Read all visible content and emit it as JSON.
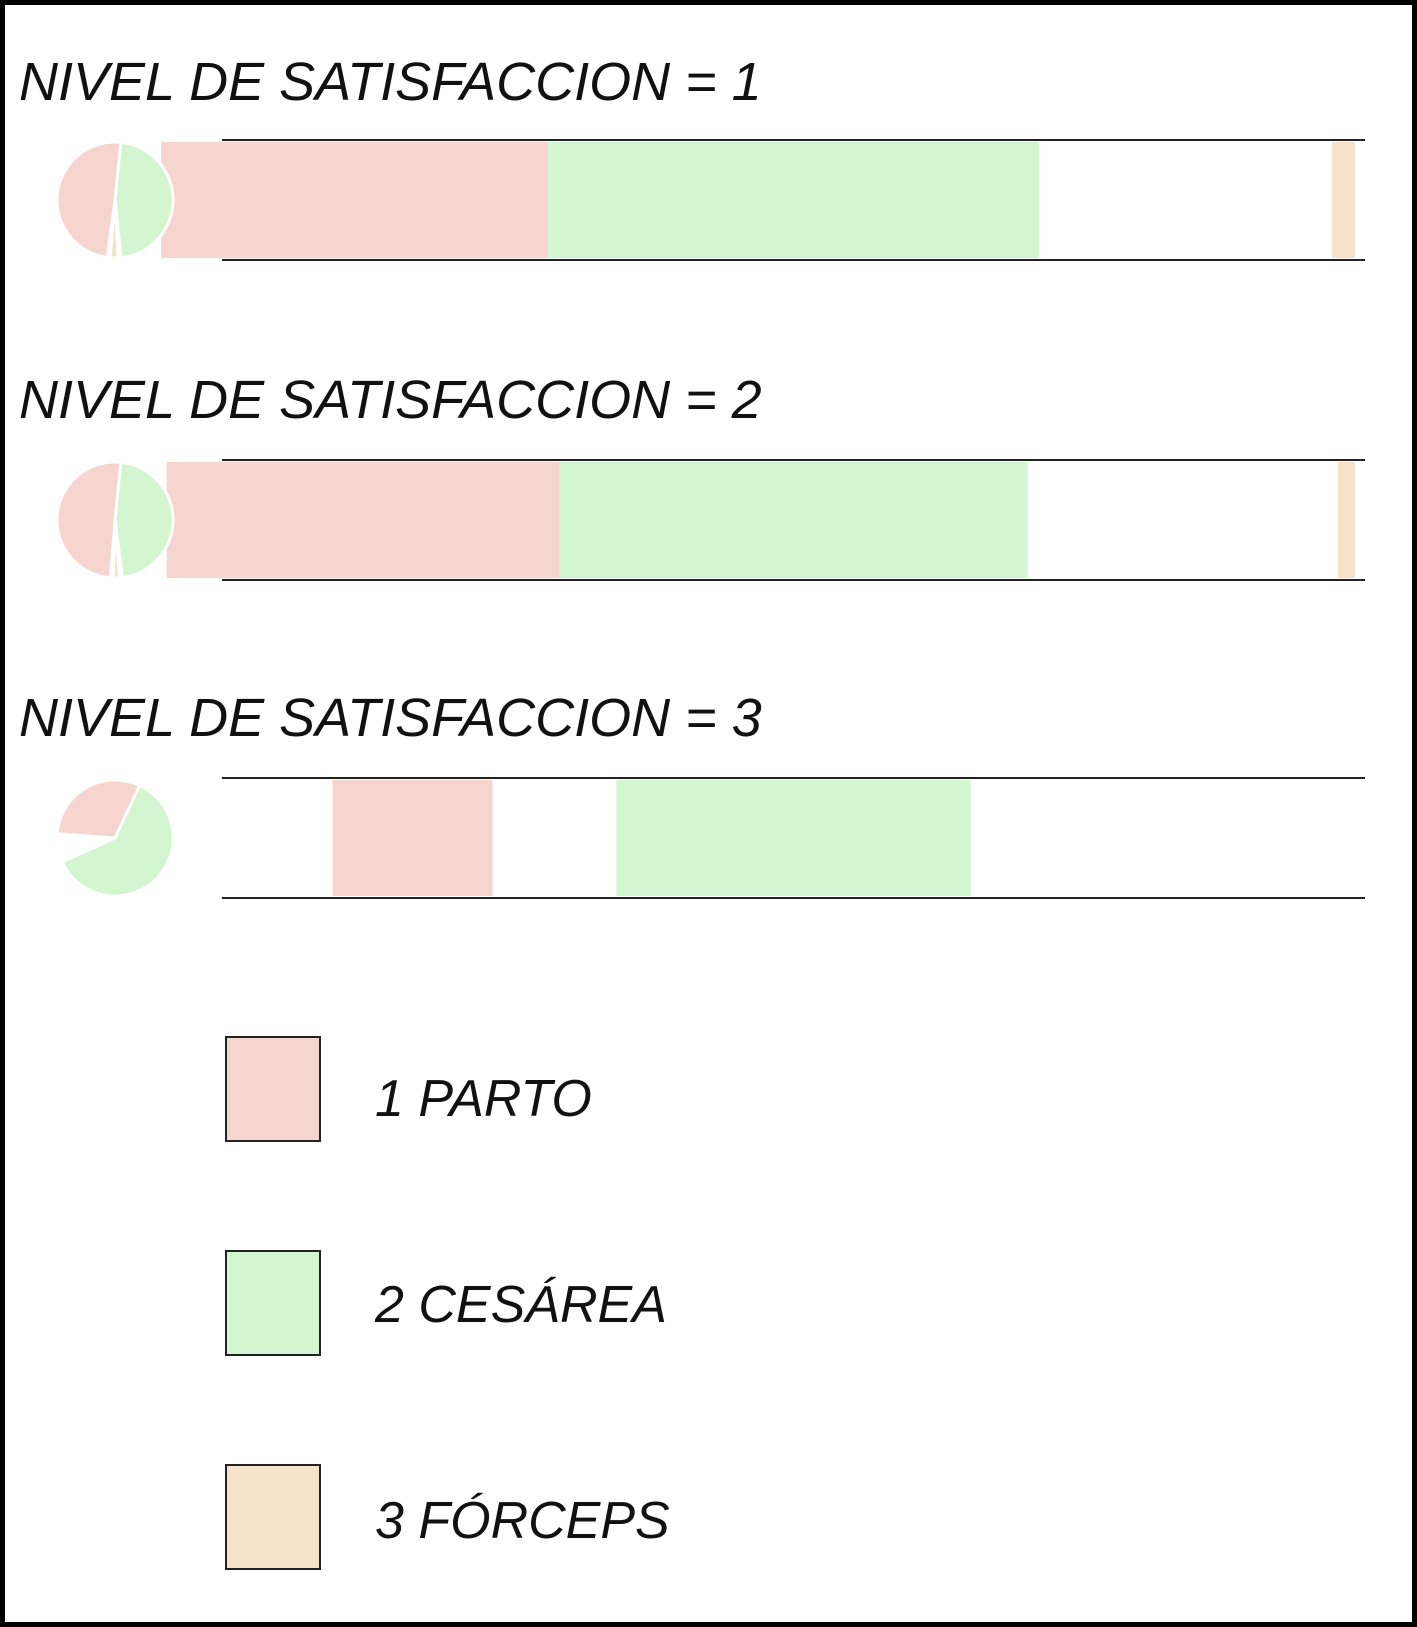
{
  "chart_data": {
    "type": "bar",
    "categories": [
      "1 PARTO",
      "2 CESÁREA",
      "3 FÓRCEPS"
    ],
    "colors": [
      "#f6d5cf",
      "#d3f5cf",
      "#f6e2c9"
    ],
    "panels": [
      {
        "title": "NIVEL DE SATISFACCION = 1",
        "values": [
          0.44,
          0.43,
          0.02
        ]
      },
      {
        "title": "NIVEL DE SATISFACCION = 2",
        "values": [
          0.43,
          0.41,
          0.015
        ]
      },
      {
        "title": "NIVEL DE SATISFACCION = 3",
        "values": [
          0.14,
          0.31,
          0.0
        ]
      }
    ],
    "legend": {
      "position": "bottom",
      "items": [
        {
          "label": "1 PARTO",
          "color": "#f6d5cf"
        },
        {
          "label": "2 CESÁREA",
          "color": "#d3f5cf"
        },
        {
          "label": "3 FÓRCEPS",
          "color": "#f6e2c9"
        }
      ]
    },
    "grid": false
  }
}
